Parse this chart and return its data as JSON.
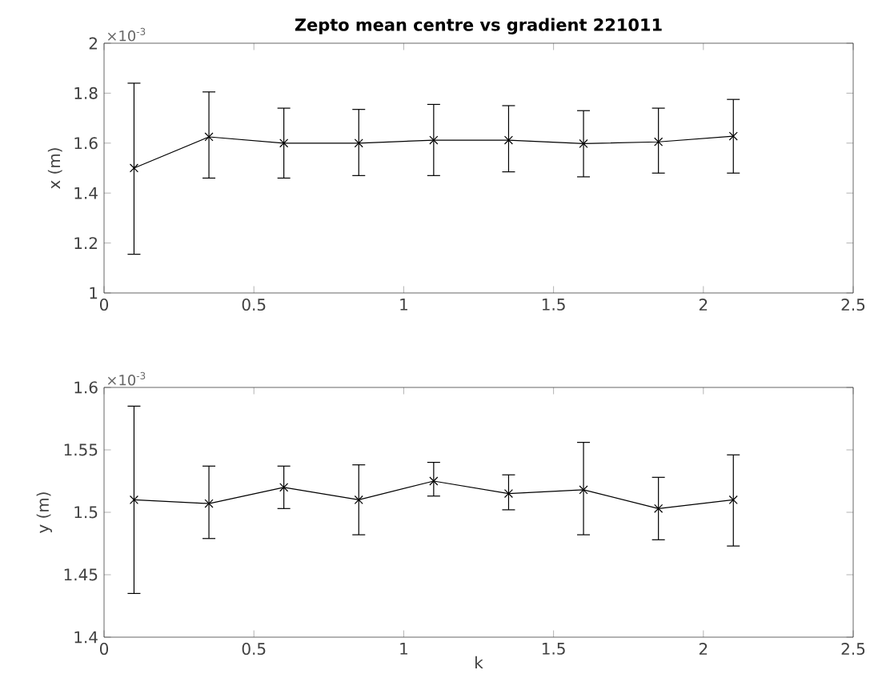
{
  "chart_data": [
    {
      "type": "line",
      "title": "Zepto mean centre vs gradient 221011",
      "ylabel": "x (m)",
      "annotations": [
        "×10$^{-3}$"
      ],
      "x": [
        0.1,
        0.35,
        0.6,
        0.85,
        1.1,
        1.35,
        1.6,
        1.85,
        2.1
      ],
      "values": [
        1.5,
        1.625,
        1.6,
        1.6,
        1.612,
        1.612,
        1.598,
        1.605,
        1.628
      ],
      "errors": [
        [
          1.155,
          1.84
        ],
        [
          1.46,
          1.805
        ],
        [
          1.46,
          1.74
        ],
        [
          1.47,
          1.735
        ],
        [
          1.47,
          1.755
        ],
        [
          1.485,
          1.75
        ],
        [
          1.465,
          1.73
        ],
        [
          1.48,
          1.74
        ],
        [
          1.48,
          1.775
        ]
      ],
      "color": "#000000",
      "marker": "cross",
      "line_style": "solid",
      "xlim": [
        0,
        2.5
      ],
      "xticks": [
        0,
        0.5,
        1,
        1.5,
        2,
        2.5
      ],
      "ylim": [
        1,
        2
      ],
      "yticks": [
        1,
        1.2,
        1.4,
        1.6,
        1.8,
        2
      ]
    },
    {
      "type": "line",
      "xlabel": "k",
      "ylabel": "y (m)",
      "annotations": [
        "×10$^{-3}$"
      ],
      "x": [
        0.1,
        0.35,
        0.6,
        0.85,
        1.1,
        1.35,
        1.6,
        1.85,
        2.1
      ],
      "values": [
        1.51,
        1.507,
        1.52,
        1.51,
        1.525,
        1.515,
        1.518,
        1.503,
        1.51
      ],
      "errors": [
        [
          1.435,
          1.585
        ],
        [
          1.479,
          1.537
        ],
        [
          1.503,
          1.537
        ],
        [
          1.482,
          1.538
        ],
        [
          1.513,
          1.54
        ],
        [
          1.502,
          1.53
        ],
        [
          1.482,
          1.556
        ],
        [
          1.478,
          1.528
        ],
        [
          1.473,
          1.546
        ]
      ],
      "color": "#000000",
      "marker": "cross",
      "line_style": "solid",
      "xlim": [
        0,
        2.5
      ],
      "xticks": [
        0,
        0.5,
        1,
        1.5,
        2,
        2.5
      ],
      "ylim": [
        1.4,
        1.6
      ],
      "yticks": [
        1.4,
        1.45,
        1.5,
        1.55,
        1.6
      ]
    }
  ]
}
